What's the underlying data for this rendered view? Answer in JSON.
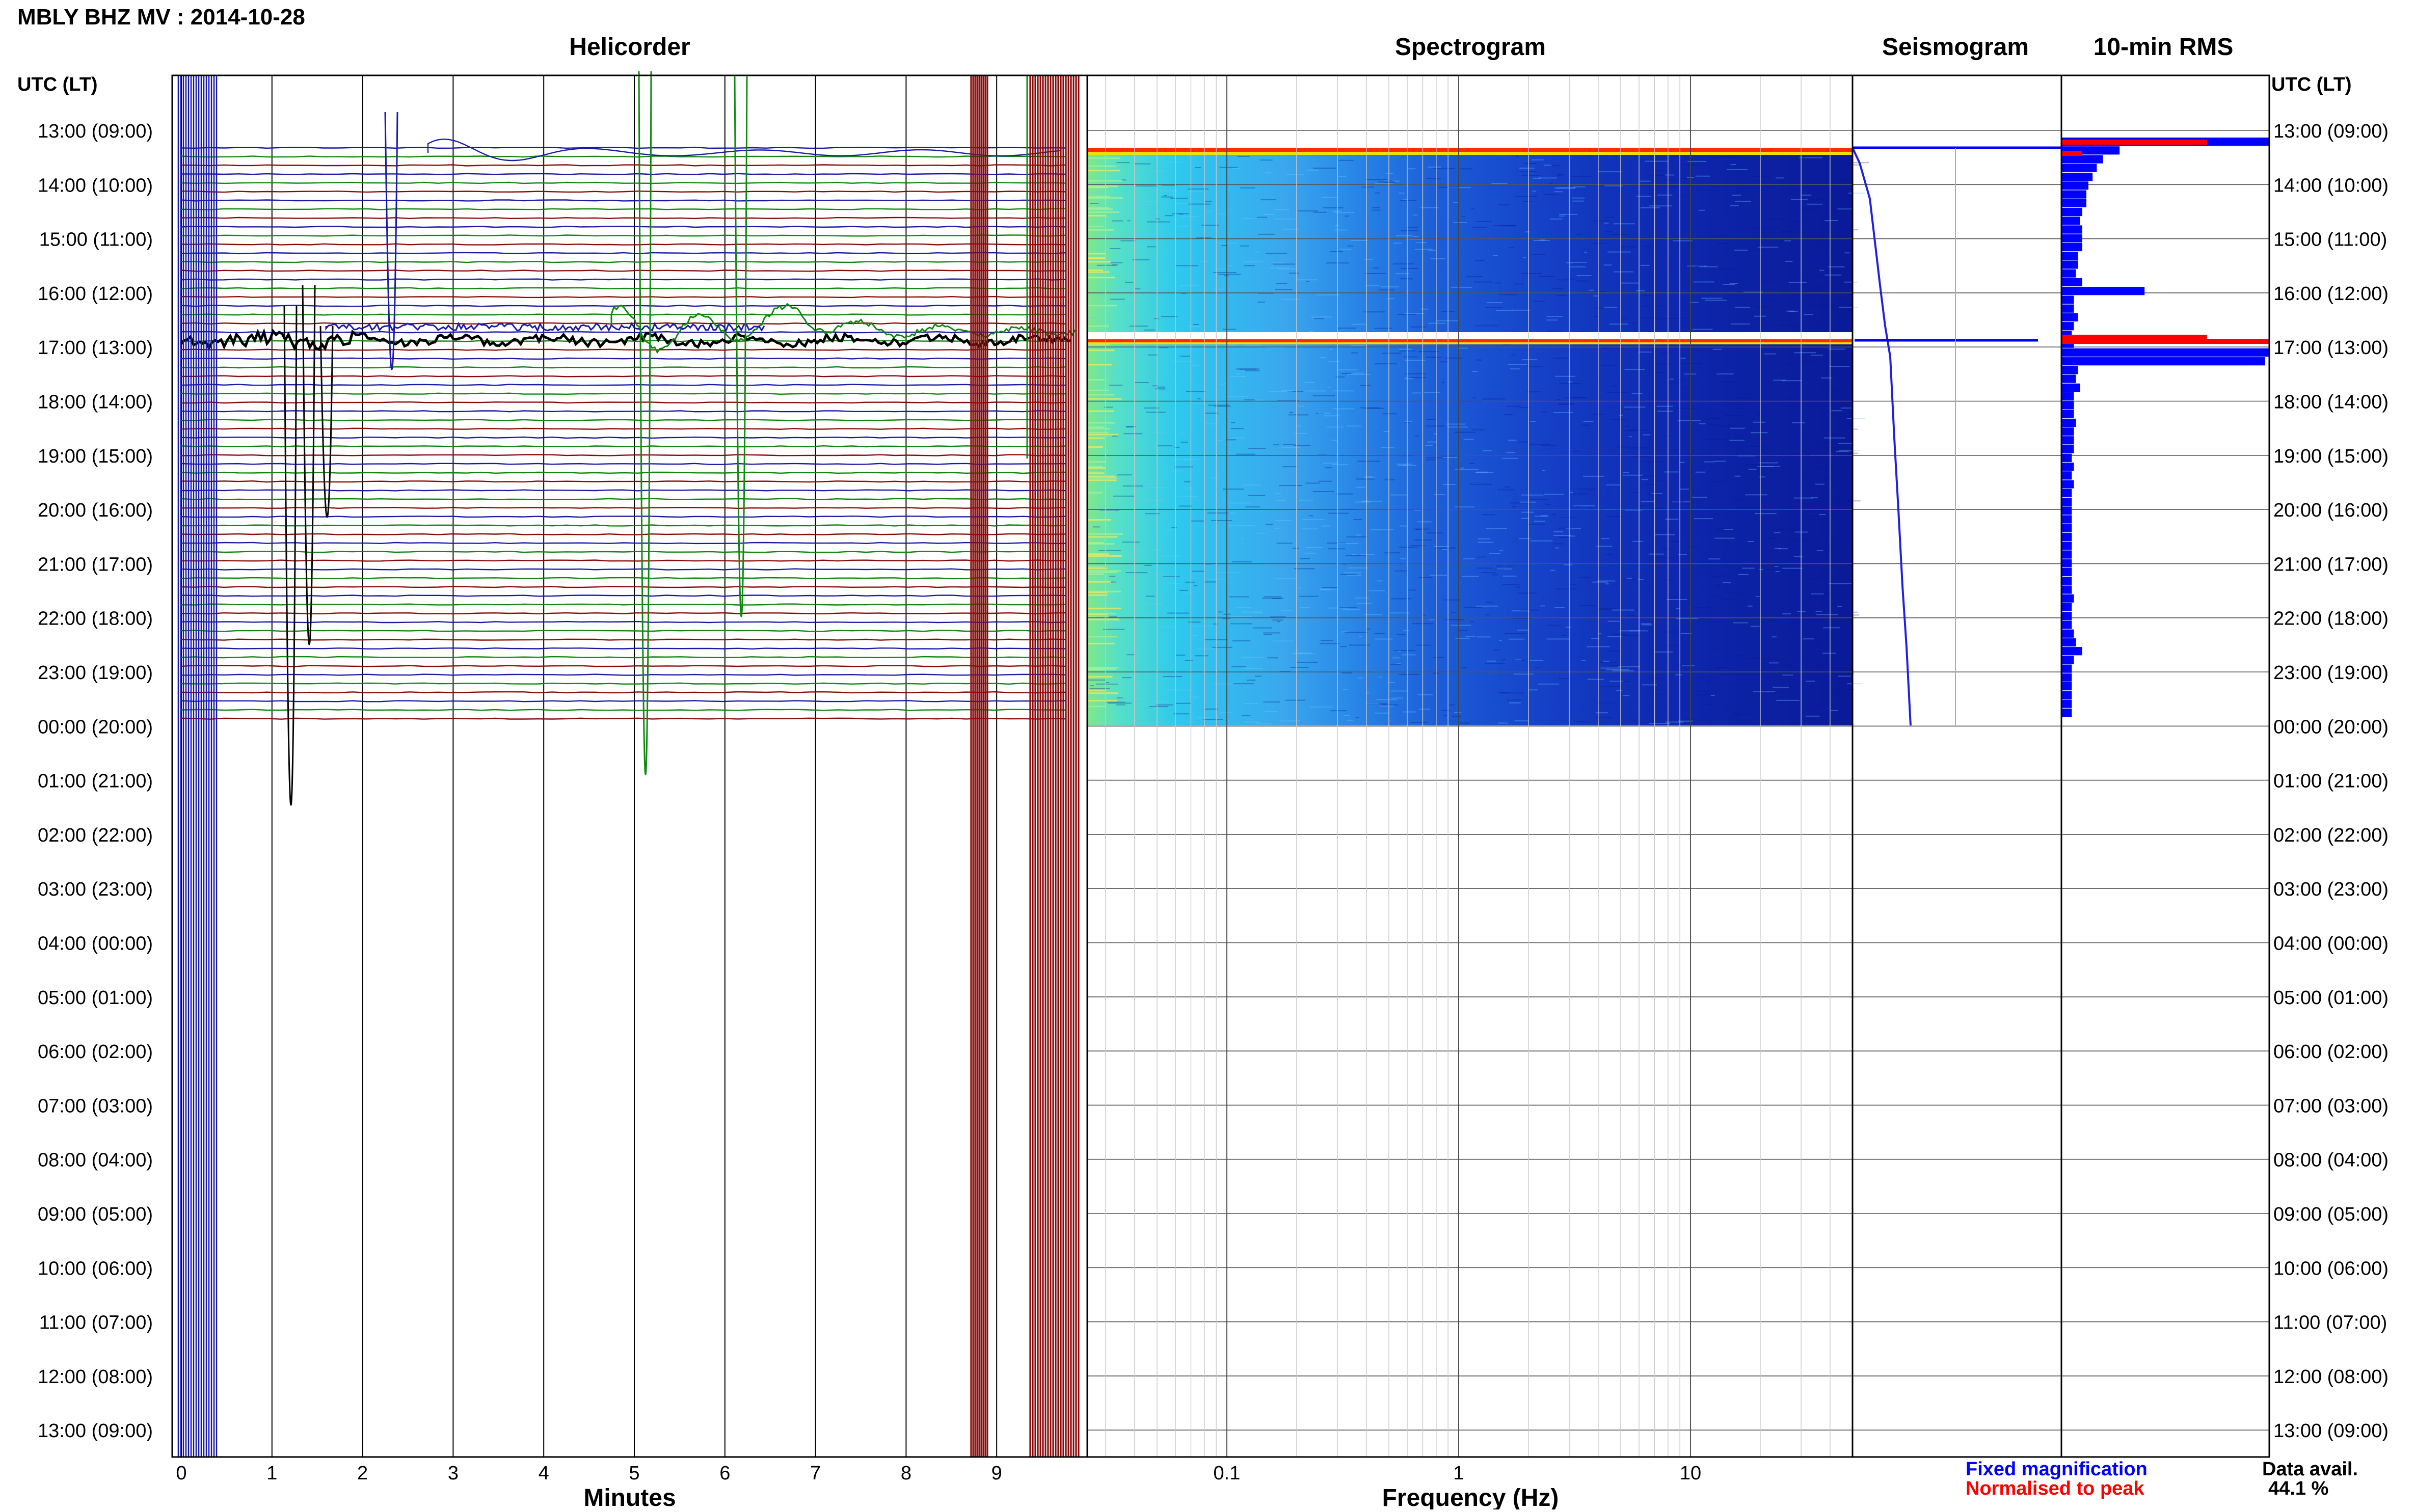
{
  "title": "MBLY BHZ MV : 2014-10-28",
  "time_axis_label": "UTC (LT)",
  "time_ticks": [
    "13:00 (09:00)",
    "14:00 (10:00)",
    "15:00 (11:00)",
    "16:00 (12:00)",
    "17:00 (13:00)",
    "18:00 (14:00)",
    "19:00 (15:00)",
    "20:00 (16:00)",
    "21:00 (17:00)",
    "22:00 (18:00)",
    "23:00 (19:00)",
    "00:00 (20:00)",
    "01:00 (21:00)",
    "02:00 (22:00)",
    "03:00 (23:00)",
    "04:00 (00:00)",
    "05:00 (01:00)",
    "06:00 (02:00)",
    "07:00 (03:00)",
    "08:00 (04:00)",
    "09:00 (05:00)",
    "10:00 (06:00)",
    "11:00 (07:00)",
    "12:00 (08:00)",
    "13:00 (09:00)"
  ],
  "panels": {
    "helicorder": "Helicorder",
    "spectrogram": "Spectrogram",
    "seismogram": "Seismogram",
    "rms": "10-min RMS"
  },
  "helicorder_xlabel": "Minutes",
  "helicorder_xticks": [
    "0",
    "1",
    "2",
    "3",
    "4",
    "5",
    "6",
    "7",
    "8",
    "9"
  ],
  "spectrogram_xlabel": "Frequency (Hz)",
  "spectrogram_xticks": [
    "0.1",
    "1",
    "10"
  ],
  "legend": {
    "fixed": "Fixed magnification",
    "normalised": "Normalised to peak"
  },
  "data_avail": {
    "label": "Data avail.",
    "value": "44.1 %"
  },
  "colors": {
    "trace_blue": "#1a1aa8",
    "trace_green": "#108810",
    "trace_red": "#8a0a0a",
    "trace_black": "#000000",
    "legend_blue": "#0000ff",
    "legend_red": "#ff0000"
  },
  "chart_data": [
    {
      "type": "line",
      "panel": "Helicorder",
      "x_range_minutes": [
        0,
        10
      ],
      "y_range_hours_utc": [
        "13:00",
        "13:00 next day"
      ],
      "data_end_utc": "00:00",
      "trace_colors_cycle": [
        "blue",
        "green",
        "red"
      ],
      "events_utc": [
        "13:15",
        "16:50"
      ]
    },
    {
      "type": "heatmap",
      "panel": "Spectrogram",
      "x_scale": "log",
      "x_range_hz": [
        0.025,
        50
      ],
      "data_rows_utc": [
        "13:15",
        "00:00"
      ]
    },
    {
      "type": "line",
      "panel": "Seismogram",
      "series": [
        "Fixed magnification",
        "Normalised to peak"
      ]
    },
    {
      "type": "bar",
      "panel": "10-min RMS",
      "orientation": "horizontal",
      "bin_minutes": 10,
      "series": [
        {
          "name": "Fixed magnification",
          "values": [
            1.0,
            0.28,
            0.2,
            0.17,
            0.15,
            0.13,
            0.12,
            0.12,
            0.1,
            0.09,
            0.1,
            0.1,
            0.1,
            0.08,
            0.08,
            0.07,
            0.1,
            0.4,
            0.06,
            0.06,
            0.08,
            0.06,
            0.05,
            0.06,
            1.0,
            0.98,
            0.08,
            0.07,
            0.09,
            0.06,
            0.06,
            0.06,
            0.07,
            0.06,
            0.06,
            0.06,
            0.05,
            0.06,
            0.05,
            0.06,
            0.05,
            0.05,
            0.05,
            0.05,
            0.05,
            0.05,
            0.05,
            0.05,
            0.05,
            0.05,
            0.05,
            0.05,
            0.06,
            0.05,
            0.05,
            0.05,
            0.06,
            0.07,
            0.1,
            0.06,
            0.05,
            0.05,
            0.05,
            0.05,
            0.05,
            0.05
          ]
        },
        {
          "name": "Normalised to peak",
          "peaks_utc": [
            "13:10",
            "13:20",
            "16:50"
          ]
        }
      ]
    }
  ]
}
